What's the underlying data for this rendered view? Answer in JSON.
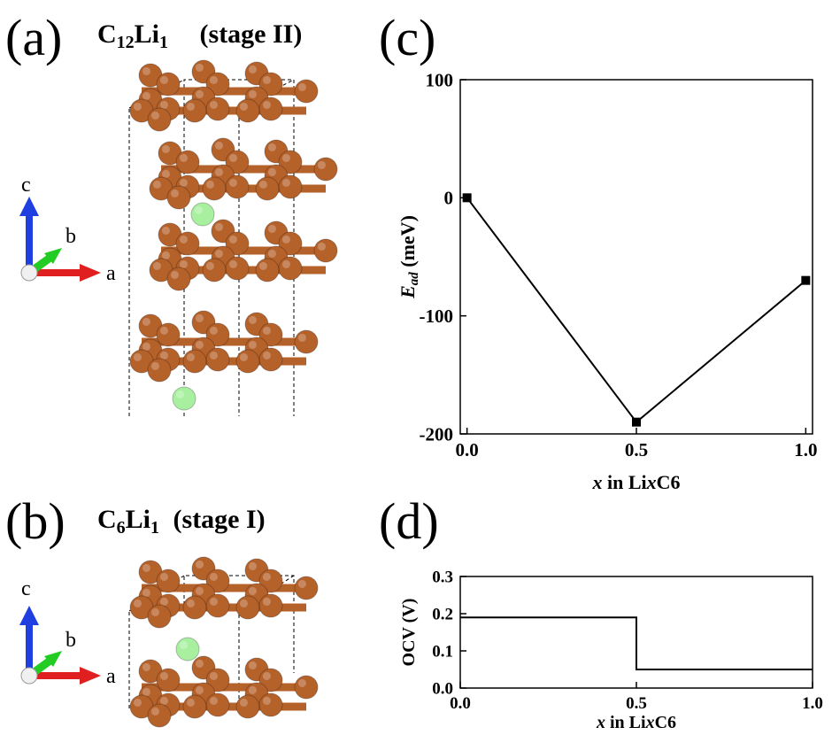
{
  "panels": {
    "a": {
      "label": "(a)",
      "title_prefix": "C",
      "title_sub1": "12",
      "title_mid": "Li",
      "title_sub2": "1",
      "title_suffix": "(stage II)"
    },
    "b": {
      "label": "(b)",
      "title_prefix": "C",
      "title_sub1": "6",
      "title_mid": "Li",
      "title_sub2": "1",
      "title_suffix": "(stage I)"
    },
    "c": {
      "label": "(c)"
    },
    "d": {
      "label": "(d)"
    }
  },
  "axes_glyph": {
    "c": "c",
    "b": "b",
    "a": "a",
    "c_color": "#1f3fe0",
    "b_color": "#22cc22",
    "a_color": "#e02020"
  },
  "colors": {
    "carbon": "#b5612a",
    "lithium": "#a8f0a0",
    "line": "#000000"
  },
  "chart_data": [
    {
      "id": "c",
      "type": "line",
      "x": [
        0.0,
        0.5,
        1.0
      ],
      "y": [
        0,
        -190,
        -70
      ],
      "xlim": [
        -0.02,
        1.02
      ],
      "ylim": [
        -200,
        100
      ],
      "xticks": [
        0.0,
        0.5,
        1.0
      ],
      "xtick_labels": [
        "0.0",
        "0.5",
        "1.0"
      ],
      "yticks": [
        -200,
        -100,
        0,
        100
      ],
      "ytick_labels": [
        "-200",
        "-100",
        "0",
        "100"
      ],
      "ylabel_main": "E",
      "ylabel_sub": "ad",
      "ylabel_unit": " (meV)",
      "xlabel_var": "x",
      "xlabel_rest": " in Li",
      "xlabel_var2": "x",
      "xlabel_tail": "C6",
      "marker": "square",
      "grid": false
    },
    {
      "id": "d",
      "type": "line",
      "step": true,
      "x": [
        0.0,
        0.5,
        0.5,
        1.0
      ],
      "y": [
        0.19,
        0.19,
        0.05,
        0.05
      ],
      "xlim": [
        0.0,
        1.0
      ],
      "ylim": [
        0.0,
        0.3
      ],
      "xticks": [
        0.0,
        0.5,
        1.0
      ],
      "xtick_labels": [
        "0.0",
        "0.5",
        "1.0"
      ],
      "yticks": [
        0.0,
        0.1,
        0.2,
        0.3
      ],
      "ytick_labels": [
        "0.0",
        "0.1",
        "0.2",
        "0.3"
      ],
      "ylabel": "OCV (V)",
      "xlabel_var": "x",
      "xlabel_rest": " in Li",
      "xlabel_var2": "x",
      "xlabel_tail": "C6",
      "grid": false
    }
  ]
}
